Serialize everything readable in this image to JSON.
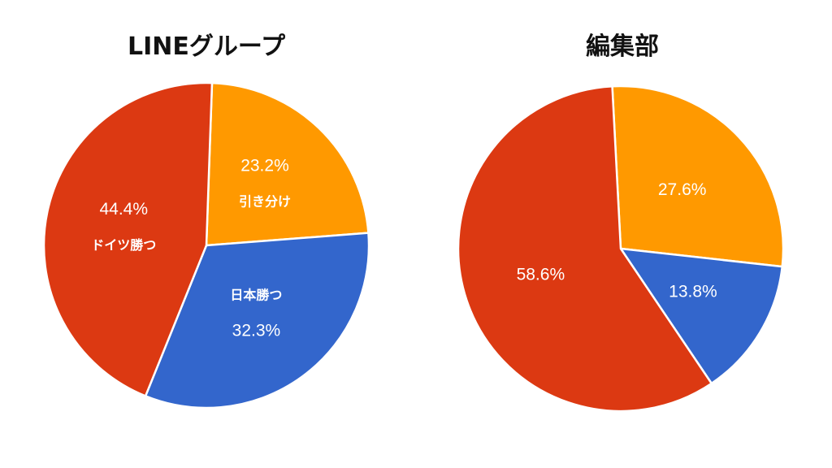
{
  "chart_data": [
    {
      "type": "pie",
      "title": "LINEグループ",
      "slices": [
        {
          "label": "引き分け",
          "value": 23.2,
          "value_label": "23.2%",
          "color": "#ff9900"
        },
        {
          "label": "日本勝つ",
          "value": 32.3,
          "value_label": "32.3%",
          "color": "#3366cc"
        },
        {
          "label": "ドイツ勝つ",
          "value": 44.4,
          "value_label": "44.4%",
          "color": "#dc3912"
        }
      ]
    },
    {
      "type": "pie",
      "title": "編集部",
      "slices": [
        {
          "label": "",
          "value": 27.6,
          "value_label": "27.6%",
          "color": "#ff9900"
        },
        {
          "label": "",
          "value": 13.8,
          "value_label": "13.8%",
          "color": "#3366cc"
        },
        {
          "label": "",
          "value": 58.6,
          "value_label": "58.6%",
          "color": "#dc3912"
        }
      ]
    }
  ]
}
